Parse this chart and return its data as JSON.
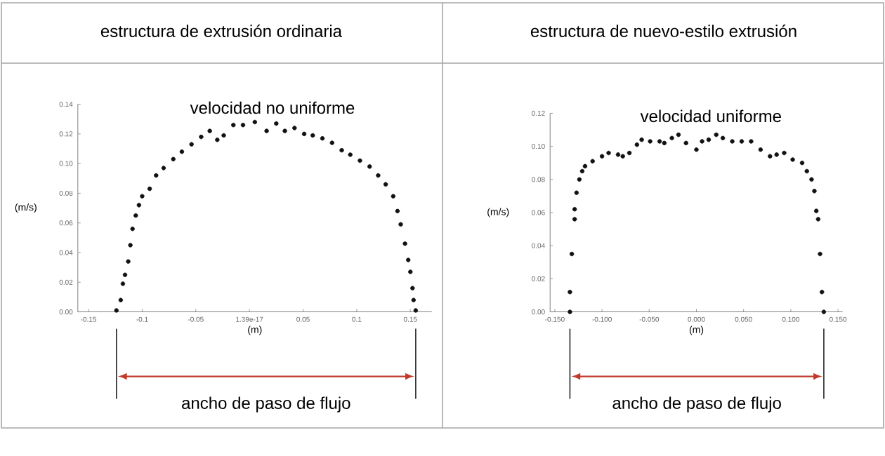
{
  "chart_data": [
    {
      "type": "scatter",
      "title": "estructura de extrusión ordinaria",
      "subtitle": "velocidad no uniforme",
      "xlabel": "(m)",
      "ylabel": "(m/s)",
      "color": "#111111",
      "marker": "circle",
      "x": [
        -0.124,
        -0.12,
        -0.118,
        -0.116,
        -0.113,
        -0.111,
        -0.109,
        -0.106,
        -0.103,
        -0.1,
        -0.093,
        -0.087,
        -0.08,
        -0.071,
        -0.063,
        -0.054,
        -0.045,
        -0.037,
        -0.03,
        -0.024,
        -0.015,
        -0.006,
        0.005,
        0.016,
        0.025,
        0.033,
        0.042,
        0.051,
        0.059,
        0.068,
        0.077,
        0.086,
        0.094,
        0.103,
        0.112,
        0.12,
        0.127,
        0.134,
        0.138,
        0.141,
        0.145,
        0.148,
        0.15,
        0.152,
        0.153,
        0.155
      ],
      "values": [
        0.001,
        0.008,
        0.019,
        0.025,
        0.034,
        0.045,
        0.056,
        0.065,
        0.072,
        0.078,
        0.083,
        0.092,
        0.097,
        0.103,
        0.108,
        0.113,
        0.118,
        0.122,
        0.116,
        0.119,
        0.126,
        0.126,
        0.128,
        0.122,
        0.127,
        0.122,
        0.124,
        0.12,
        0.119,
        0.117,
        0.114,
        0.109,
        0.106,
        0.102,
        0.098,
        0.092,
        0.086,
        0.078,
        0.068,
        0.059,
        0.046,
        0.035,
        0.027,
        0.016,
        0.008,
        0.001
      ],
      "xlim": [
        -0.16,
        0.17
      ],
      "ylim": [
        0,
        0.14
      ],
      "xticks": [
        {
          "value": -0.15,
          "label": "-0.15"
        },
        {
          "value": -0.1,
          "label": "-0.1"
        },
        {
          "value": -0.05,
          "label": "-0.05"
        },
        {
          "value": 0,
          "label": "1.39e-17"
        },
        {
          "value": 0.05,
          "label": "0.05"
        },
        {
          "value": 0.1,
          "label": "0.1"
        },
        {
          "value": 0.15,
          "label": "0.15"
        }
      ],
      "yticks": [
        {
          "value": 0,
          "label": "0.00"
        },
        {
          "value": 0.02,
          "label": "0.02"
        },
        {
          "value": 0.04,
          "label": "0.04"
        },
        {
          "value": 0.06,
          "label": "0.06"
        },
        {
          "value": 0.08,
          "label": "0.08"
        },
        {
          "value": 0.1,
          "label": "0.10"
        },
        {
          "value": 0.12,
          "label": "0.12"
        },
        {
          "value": 0.14,
          "label": "0.14"
        }
      ],
      "annotations": [
        "ancho de paso de flujo"
      ]
    },
    {
      "type": "scatter",
      "title": "estructura de nuevo-estilo extrusión",
      "subtitle": "velocidad uniforme",
      "xlabel": "(m)",
      "ylabel": "(m/s)",
      "color": "#111111",
      "marker": "circle",
      "x": [
        -0.134,
        -0.134,
        -0.132,
        -0.129,
        -0.129,
        -0.127,
        -0.124,
        -0.121,
        -0.118,
        -0.11,
        -0.1,
        -0.093,
        -0.083,
        -0.078,
        -0.071,
        -0.063,
        -0.058,
        -0.049,
        -0.039,
        -0.034,
        -0.026,
        -0.019,
        -0.011,
        0.0,
        0.006,
        0.013,
        0.021,
        0.028,
        0.038,
        0.048,
        0.058,
        0.068,
        0.078,
        0.085,
        0.093,
        0.102,
        0.112,
        0.117,
        0.122,
        0.125,
        0.127,
        0.129,
        0.131,
        0.133,
        0.135
      ],
      "values": [
        0.0,
        0.012,
        0.035,
        0.056,
        0.062,
        0.072,
        0.08,
        0.085,
        0.088,
        0.091,
        0.094,
        0.096,
        0.095,
        0.094,
        0.096,
        0.101,
        0.104,
        0.103,
        0.103,
        0.102,
        0.105,
        0.107,
        0.102,
        0.098,
        0.103,
        0.104,
        0.107,
        0.105,
        0.103,
        0.103,
        0.103,
        0.098,
        0.094,
        0.095,
        0.096,
        0.092,
        0.09,
        0.085,
        0.08,
        0.073,
        0.061,
        0.056,
        0.035,
        0.012,
        0.0
      ],
      "xlim": [
        -0.155,
        0.155
      ],
      "ylim": [
        0,
        0.12
      ],
      "xticks": [
        {
          "value": -0.15,
          "label": "-0.150"
        },
        {
          "value": -0.1,
          "label": "-0.100"
        },
        {
          "value": -0.05,
          "label": "-0.050"
        },
        {
          "value": 0,
          "label": "0.000"
        },
        {
          "value": 0.05,
          "label": "0.050"
        },
        {
          "value": 0.1,
          "label": "0.100"
        },
        {
          "value": 0.15,
          "label": "0.150"
        }
      ],
      "yticks": [
        {
          "value": 0,
          "label": "0.00"
        },
        {
          "value": 0.02,
          "label": "0.02"
        },
        {
          "value": 0.04,
          "label": "0.04"
        },
        {
          "value": 0.06,
          "label": "0.06"
        },
        {
          "value": 0.08,
          "label": "0.08"
        },
        {
          "value": 0.1,
          "label": "0.10"
        },
        {
          "value": 0.12,
          "label": "0.12"
        }
      ],
      "annotations": [
        "ancho de paso de flujo"
      ]
    }
  ]
}
